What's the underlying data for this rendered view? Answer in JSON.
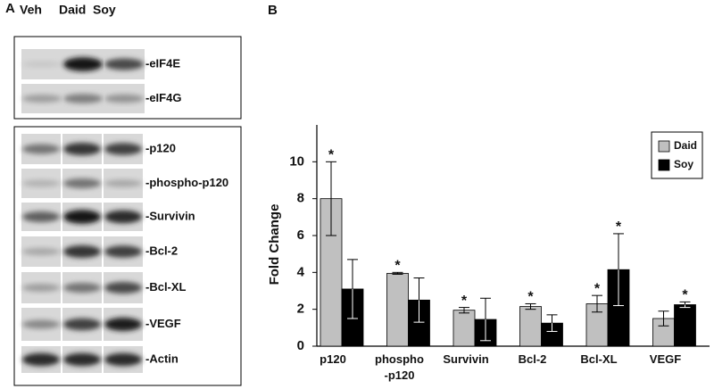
{
  "panel_a": {
    "label": "A",
    "lanes": [
      "Veh",
      "Daid",
      "Soy"
    ],
    "blots_top": [
      "-eIF4E",
      "-eIF4G"
    ],
    "blots_bottom": [
      "-p120",
      "-phospho-p120",
      "-Survivin",
      "-Bcl-2",
      "-Bcl-XL",
      "-VEGF",
      "-Actin"
    ]
  },
  "panel_b": {
    "label": "B"
  },
  "chart_data": {
    "type": "bar",
    "y_label": "Fold Change",
    "categories": [
      "p120",
      "phospho\n-p120",
      "Survivin",
      "Bcl-2",
      "Bcl-XL",
      "VEGF"
    ],
    "series": [
      {
        "name": "Daid",
        "color": "#c0c0c0",
        "values": [
          8.0,
          3.95,
          1.95,
          2.15,
          2.3,
          1.5
        ],
        "errors": [
          2.0,
          0.05,
          0.15,
          0.15,
          0.45,
          0.4
        ],
        "significance": [
          "*",
          "*",
          "*",
          "*",
          "*",
          null
        ]
      },
      {
        "name": "Soy",
        "color": "#000000",
        "values": [
          3.1,
          2.5,
          1.45,
          1.25,
          4.15,
          2.25
        ],
        "errors": [
          1.6,
          1.2,
          1.15,
          0.45,
          1.95,
          0.15
        ],
        "significance": [
          null,
          null,
          null,
          null,
          "*",
          "*"
        ]
      }
    ],
    "ylim": [
      0,
      12
    ],
    "yticks": [
      0,
      2,
      4,
      6,
      8,
      10
    ],
    "grid": false,
    "legend": "top-right"
  }
}
